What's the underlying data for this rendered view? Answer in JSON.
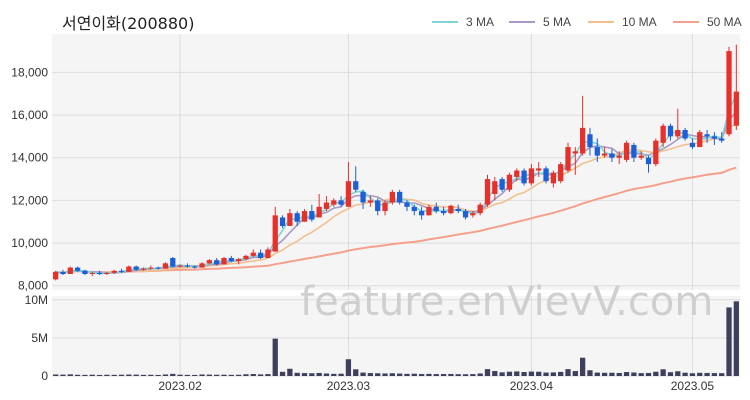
{
  "title": "서연이화(200880)",
  "watermark": "feature.enVievV.com",
  "colors": {
    "up": "#e8302a",
    "down": "#1c5fd6",
    "volume": "#3d3f5c",
    "ma3": "#7fd3d6",
    "ma5": "#a79ac4",
    "ma10": "#f2c08c",
    "ma50": "#f4a08c",
    "grid": "#dddddd",
    "panel": "#f5f5f5"
  },
  "legend": [
    {
      "label": "3 MA",
      "color": "#7fd3d6"
    },
    {
      "label": "5 MA",
      "color": "#a79ac4"
    },
    {
      "label": "10 MA",
      "color": "#f2c08c"
    },
    {
      "label": "50 MA",
      "color": "#f4a08c"
    }
  ],
  "chart_data": {
    "type": "candlestick",
    "price_axis": {
      "ticks": [
        "8,000",
        "10,000",
        "12,000",
        "14,000",
        "16,000",
        "18,000"
      ],
      "tick_values": [
        8000,
        10000,
        12000,
        14000,
        16000,
        18000
      ],
      "range": [
        7800,
        19800
      ]
    },
    "volume_axis": {
      "ticks": [
        "0",
        "5M",
        "10M"
      ],
      "tick_values": [
        0,
        5000000,
        10000000
      ],
      "range": [
        0,
        10500000
      ]
    },
    "x_labels": [
      {
        "label": "2023.02",
        "index": 17
      },
      {
        "label": "2023.03",
        "index": 40
      },
      {
        "label": "2023.04",
        "index": 65
      },
      {
        "label": "2023.05",
        "index": 87
      }
    ],
    "candles": [
      [
        8300,
        8700,
        8250,
        8650
      ],
      [
        8650,
        8750,
        8500,
        8550
      ],
      [
        8550,
        8900,
        8550,
        8850
      ],
      [
        8850,
        8900,
        8650,
        8700
      ],
      [
        8700,
        8750,
        8500,
        8550
      ],
      [
        8550,
        8650,
        8450,
        8600
      ],
      [
        8600,
        8700,
        8500,
        8550
      ],
      [
        8550,
        8650,
        8500,
        8600
      ],
      [
        8600,
        8750,
        8550,
        8700
      ],
      [
        8700,
        8800,
        8600,
        8650
      ],
      [
        8650,
        8950,
        8650,
        8900
      ],
      [
        8900,
        8950,
        8700,
        8750
      ],
      [
        8750,
        8850,
        8700,
        8800
      ],
      [
        8800,
        8950,
        8750,
        8850
      ],
      [
        8850,
        8900,
        8750,
        8800
      ],
      [
        8800,
        9100,
        8800,
        9050
      ],
      [
        9300,
        9350,
        8850,
        8900
      ],
      [
        8900,
        9000,
        8850,
        8950
      ],
      [
        8950,
        9050,
        8850,
        8900
      ],
      [
        8900,
        8950,
        8800,
        8850
      ],
      [
        8850,
        9100,
        8850,
        9050
      ],
      [
        9050,
        9250,
        9000,
        9200
      ],
      [
        9200,
        9300,
        8950,
        9000
      ],
      [
        9000,
        9350,
        9000,
        9300
      ],
      [
        9300,
        9400,
        9100,
        9150
      ],
      [
        9150,
        9300,
        9000,
        9250
      ],
      [
        9250,
        9450,
        9200,
        9400
      ],
      [
        9400,
        9700,
        9350,
        9550
      ],
      [
        9550,
        9700,
        9250,
        9300
      ],
      [
        9300,
        9800,
        9300,
        9700
      ],
      [
        9600,
        11700,
        9600,
        11300
      ],
      [
        11200,
        11300,
        10700,
        10800
      ],
      [
        10800,
        11600,
        10800,
        11400
      ],
      [
        11400,
        11500,
        10800,
        11000
      ],
      [
        11000,
        11600,
        11000,
        11500
      ],
      [
        11500,
        11800,
        11000,
        11100
      ],
      [
        11200,
        12300,
        11200,
        11700
      ],
      [
        11600,
        12200,
        11500,
        11900
      ],
      [
        11800,
        12100,
        11700,
        12000
      ],
      [
        12000,
        12200,
        11700,
        11800
      ],
      [
        11700,
        13800,
        11700,
        12900
      ],
      [
        12900,
        13600,
        12400,
        12500
      ],
      [
        12400,
        12500,
        11600,
        11900
      ],
      [
        11900,
        12200,
        11700,
        12000
      ],
      [
        12000,
        12100,
        11300,
        11500
      ],
      [
        11500,
        12000,
        11300,
        11900
      ],
      [
        11900,
        12500,
        11800,
        12400
      ],
      [
        12400,
        12500,
        11800,
        11900
      ],
      [
        11900,
        12000,
        11500,
        11700
      ],
      [
        11700,
        11800,
        11300,
        11500
      ],
      [
        11500,
        11700,
        11100,
        11300
      ],
      [
        11300,
        11800,
        11300,
        11700
      ],
      [
        11700,
        11900,
        11400,
        11500
      ],
      [
        11500,
        11700,
        11300,
        11400
      ],
      [
        11400,
        11800,
        11350,
        11750
      ],
      [
        11600,
        11800,
        11400,
        11500
      ],
      [
        11500,
        11600,
        11100,
        11200
      ],
      [
        11300,
        11500,
        11200,
        11400
      ],
      [
        11400,
        11900,
        11300,
        11800
      ],
      [
        11800,
        13200,
        11700,
        13000
      ],
      [
        12300,
        13100,
        12000,
        12900
      ],
      [
        13000,
        13100,
        12400,
        12500
      ],
      [
        12500,
        13300,
        12400,
        13200
      ],
      [
        13100,
        13500,
        12900,
        13400
      ],
      [
        13400,
        13500,
        12700,
        12800
      ],
      [
        12800,
        13700,
        12700,
        13500
      ],
      [
        13400,
        13800,
        13100,
        13500
      ],
      [
        13500,
        13600,
        12800,
        12900
      ],
      [
        12800,
        13400,
        12600,
        13300
      ],
      [
        12900,
        13800,
        12800,
        13700
      ],
      [
        13400,
        14700,
        13300,
        14500
      ],
      [
        14200,
        14500,
        13200,
        14300
      ],
      [
        14200,
        16900,
        14100,
        15400
      ],
      [
        15100,
        15400,
        14100,
        14500
      ],
      [
        14500,
        14900,
        13800,
        14100
      ],
      [
        14100,
        14500,
        14000,
        14200
      ],
      [
        14200,
        14400,
        13800,
        14000
      ],
      [
        14000,
        14300,
        13700,
        14100
      ],
      [
        13900,
        14800,
        13800,
        14700
      ],
      [
        14600,
        14700,
        13800,
        14000
      ],
      [
        14000,
        14300,
        13900,
        14100
      ],
      [
        14000,
        14100,
        13300,
        13700
      ],
      [
        13700,
        14900,
        13600,
        14800
      ],
      [
        14700,
        15600,
        14500,
        15500
      ],
      [
        15500,
        15600,
        14800,
        15000
      ],
      [
        15000,
        16300,
        14900,
        15300
      ],
      [
        15300,
        15400,
        14800,
        14900
      ],
      [
        14700,
        14900,
        14400,
        14500
      ],
      [
        14500,
        15300,
        14500,
        15200
      ],
      [
        15100,
        15300,
        14700,
        15000
      ],
      [
        15000,
        15200,
        14600,
        14900
      ],
      [
        14900,
        15200,
        14700,
        14800
      ],
      [
        15100,
        19200,
        15000,
        19000
      ],
      [
        15500,
        19300,
        15300,
        17100
      ]
    ],
    "volume": [
      200000,
      180000,
      220000,
      160000,
      150000,
      170000,
      140000,
      160000,
      150000,
      170000,
      190000,
      180000,
      150000,
      160000,
      140000,
      200000,
      280000,
      170000,
      150000,
      140000,
      200000,
      180000,
      160000,
      170000,
      150000,
      160000,
      230000,
      260000,
      210000,
      250000,
      4900000,
      550000,
      950000,
      420000,
      380000,
      360000,
      400000,
      330000,
      280000,
      300000,
      2200000,
      880000,
      450000,
      380000,
      360000,
      330000,
      360000,
      320000,
      280000,
      300000,
      260000,
      280000,
      250000,
      260000,
      270000,
      240000,
      230000,
      250000,
      330000,
      900000,
      650000,
      480000,
      560000,
      600000,
      520000,
      580000,
      560000,
      450000,
      470000,
      540000,
      900000,
      650000,
      2400000,
      750000,
      450000,
      420000,
      430000,
      400000,
      520000,
      460000,
      380000,
      400000,
      560000,
      880000,
      500000,
      620000,
      430000,
      360000,
      420000,
      400000,
      380000,
      370000,
      9000000,
      9800000
    ],
    "moving_averages": [
      "3 MA",
      "5 MA",
      "10 MA",
      "50 MA"
    ]
  }
}
